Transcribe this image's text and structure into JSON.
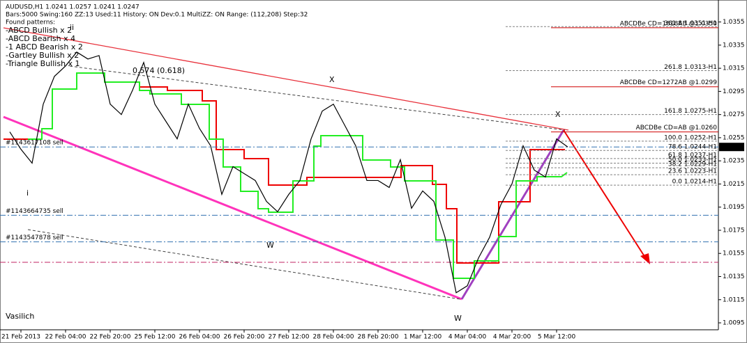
{
  "chart_data": {
    "type": "line",
    "title": "AUDUSD,H1  1.0241 1.0257 1.0241 1.0247",
    "subtitle": "Bars:5000  Swing:160  ZZ:13  Used:11  History: ON Dev:0.1  MultiZZ: ON  Range: (112,208)  Step:32",
    "patterns_heading": "Found patterns:",
    "patterns": [
      {
        "label": "-ABCD Bullish x 2",
        "color": "#00c000"
      },
      {
        "label": "-ABCD Bearish x 4",
        "color": "#d00000"
      },
      {
        "label": "-1 ABCD Bearish x 2",
        "color": "#d00000"
      },
      {
        "label": "-Gartley Bullish x 2",
        "color": "#00c000"
      },
      {
        "label": "-Triangle Bullish x 1",
        "color": "#00c000"
      }
    ],
    "categories": [
      null,
      "21 Feb 2013",
      null,
      null,
      null,
      "22 Feb 04:00",
      null,
      null,
      null,
      "22 Feb 20:00",
      null,
      null,
      null,
      "25 Feb 12:00",
      null,
      null,
      null,
      "26 Feb 04:00",
      null,
      null,
      null,
      "26 Feb 20:00",
      null,
      null,
      null,
      "27 Feb 12:00",
      null,
      null,
      null,
      "28 Feb 04:00",
      null,
      null,
      null,
      "28 Feb 20:00",
      null,
      null,
      null,
      "1 Mar 12:00",
      null,
      null,
      null,
      "4 Mar 04:00",
      null,
      null,
      null,
      "4 Mar 20:00",
      null,
      null,
      null,
      "5 Mar 12:00",
      null
    ],
    "values": [
      1.026,
      1.0245,
      1.0233,
      1.0284,
      1.0308,
      1.0317,
      1.0329,
      1.0323,
      1.0326,
      1.0284,
      1.0275,
      1.0296,
      1.032,
      1.0284,
      1.0269,
      1.0254,
      1.0284,
      1.0263,
      1.0248,
      1.0206,
      1.023,
      1.0224,
      1.0218,
      1.02,
      1.0191,
      1.0206,
      1.0218,
      1.0254,
      1.0278,
      1.0284,
      1.0266,
      1.0248,
      1.0218,
      1.0218,
      1.0212,
      1.0236,
      1.0194,
      1.0209,
      1.02,
      1.0169,
      1.0121,
      1.0127,
      1.0151,
      1.0169,
      1.0197,
      1.0215,
      1.0248,
      1.0227,
      1.0221,
      1.0254,
      1.0247
    ],
    "color": "#000000",
    "ylim": [
      1.0089,
      1.0374
    ],
    "yticks": [
      1.0355,
      1.0335,
      1.0315,
      1.0295,
      1.0275,
      1.0255,
      1.0235,
      1.0215,
      1.0195,
      1.0175,
      1.0155,
      1.0135,
      1.0115,
      1.0095
    ],
    "grid": false,
    "current_price": 1.0247,
    "fib_levels": [
      {
        "value": 1.0351,
        "label": "361.8 1.0351-H1"
      },
      {
        "value": 1.0313,
        "label": "261.8 1.0313-H1"
      },
      {
        "value": 1.0275,
        "label": "161.8 1.0275-H1"
      },
      {
        "value": 1.0252,
        "label": "100.0 1.0252-H1"
      },
      {
        "value": 1.0244,
        "label": "78.6 1.0244-H1"
      },
      {
        "value": 1.0237,
        "label": "61.8 1.0237-H1"
      },
      {
        "value": 1.0233,
        "label": "50.0 1.0233-H1"
      },
      {
        "value": 1.0229,
        "label": "38.2 1.0229-H1"
      },
      {
        "value": 1.0223,
        "label": "23.6 1.0223-H1"
      },
      {
        "value": 1.0214,
        "label": "0.0 1.0214-H1"
      }
    ],
    "targets": [
      {
        "value": 1.035,
        "label": "ABCDBe CD=1618AB  @1.0350"
      },
      {
        "value": 1.0299,
        "label": "ABCDBe CD=1272AB  @1.0299"
      },
      {
        "value": 1.026,
        "label": "ABCDBe CD=AB  @1.0260"
      }
    ],
    "orders": [
      {
        "value": 1.0247,
        "label": "#1143617108 sell"
      },
      {
        "value": 1.0188,
        "label": "#1143664735 sell"
      },
      {
        "value": 1.0165,
        "label": "#1143547878 sell"
      }
    ],
    "annotations": [
      "ii",
      "i",
      "X",
      "W",
      "X",
      "W",
      "0.574 (0.618)",
      "Vasilich"
    ]
  }
}
